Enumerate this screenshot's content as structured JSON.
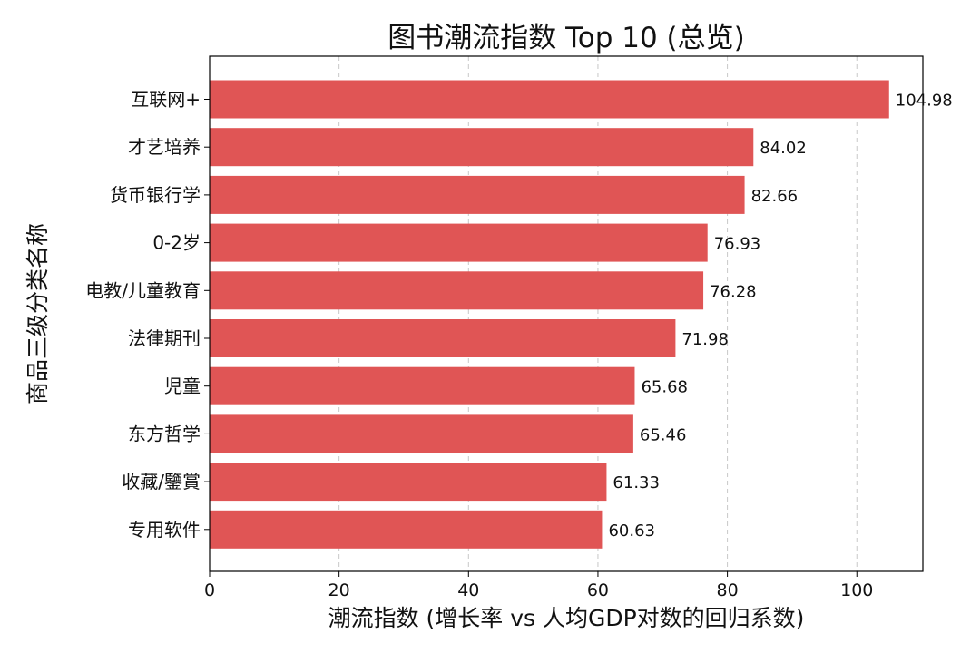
{
  "chart_data": {
    "type": "bar",
    "orientation": "horizontal",
    "title": "图书潮流指数 Top 10 (总览)",
    "xlabel": "潮流指数 (增长率 vs 人均GDP对数的回归系数)",
    "ylabel": "商品三级分类名称",
    "categories": [
      "互联网+",
      "才艺培养",
      "货币银行学",
      "0-2岁",
      "电教/儿童教育",
      "法律期刊",
      "児童",
      "东方哲学",
      "收藏/鑒賞",
      "专用软件"
    ],
    "values": [
      104.98,
      84.02,
      82.66,
      76.93,
      76.28,
      71.98,
      65.68,
      65.46,
      61.33,
      60.63
    ],
    "value_labels": [
      "104.98",
      "84.02",
      "82.66",
      "76.93",
      "76.28",
      "71.98",
      "65.68",
      "65.46",
      "61.33",
      "60.63"
    ],
    "xlim": [
      0,
      110.2
    ],
    "xticks": [
      0,
      20,
      40,
      60,
      80,
      100
    ],
    "xtick_labels": [
      "0",
      "20",
      "40",
      "60",
      "80",
      "100"
    ],
    "grid": "vertical dashed",
    "bar_color": "#e05555"
  }
}
